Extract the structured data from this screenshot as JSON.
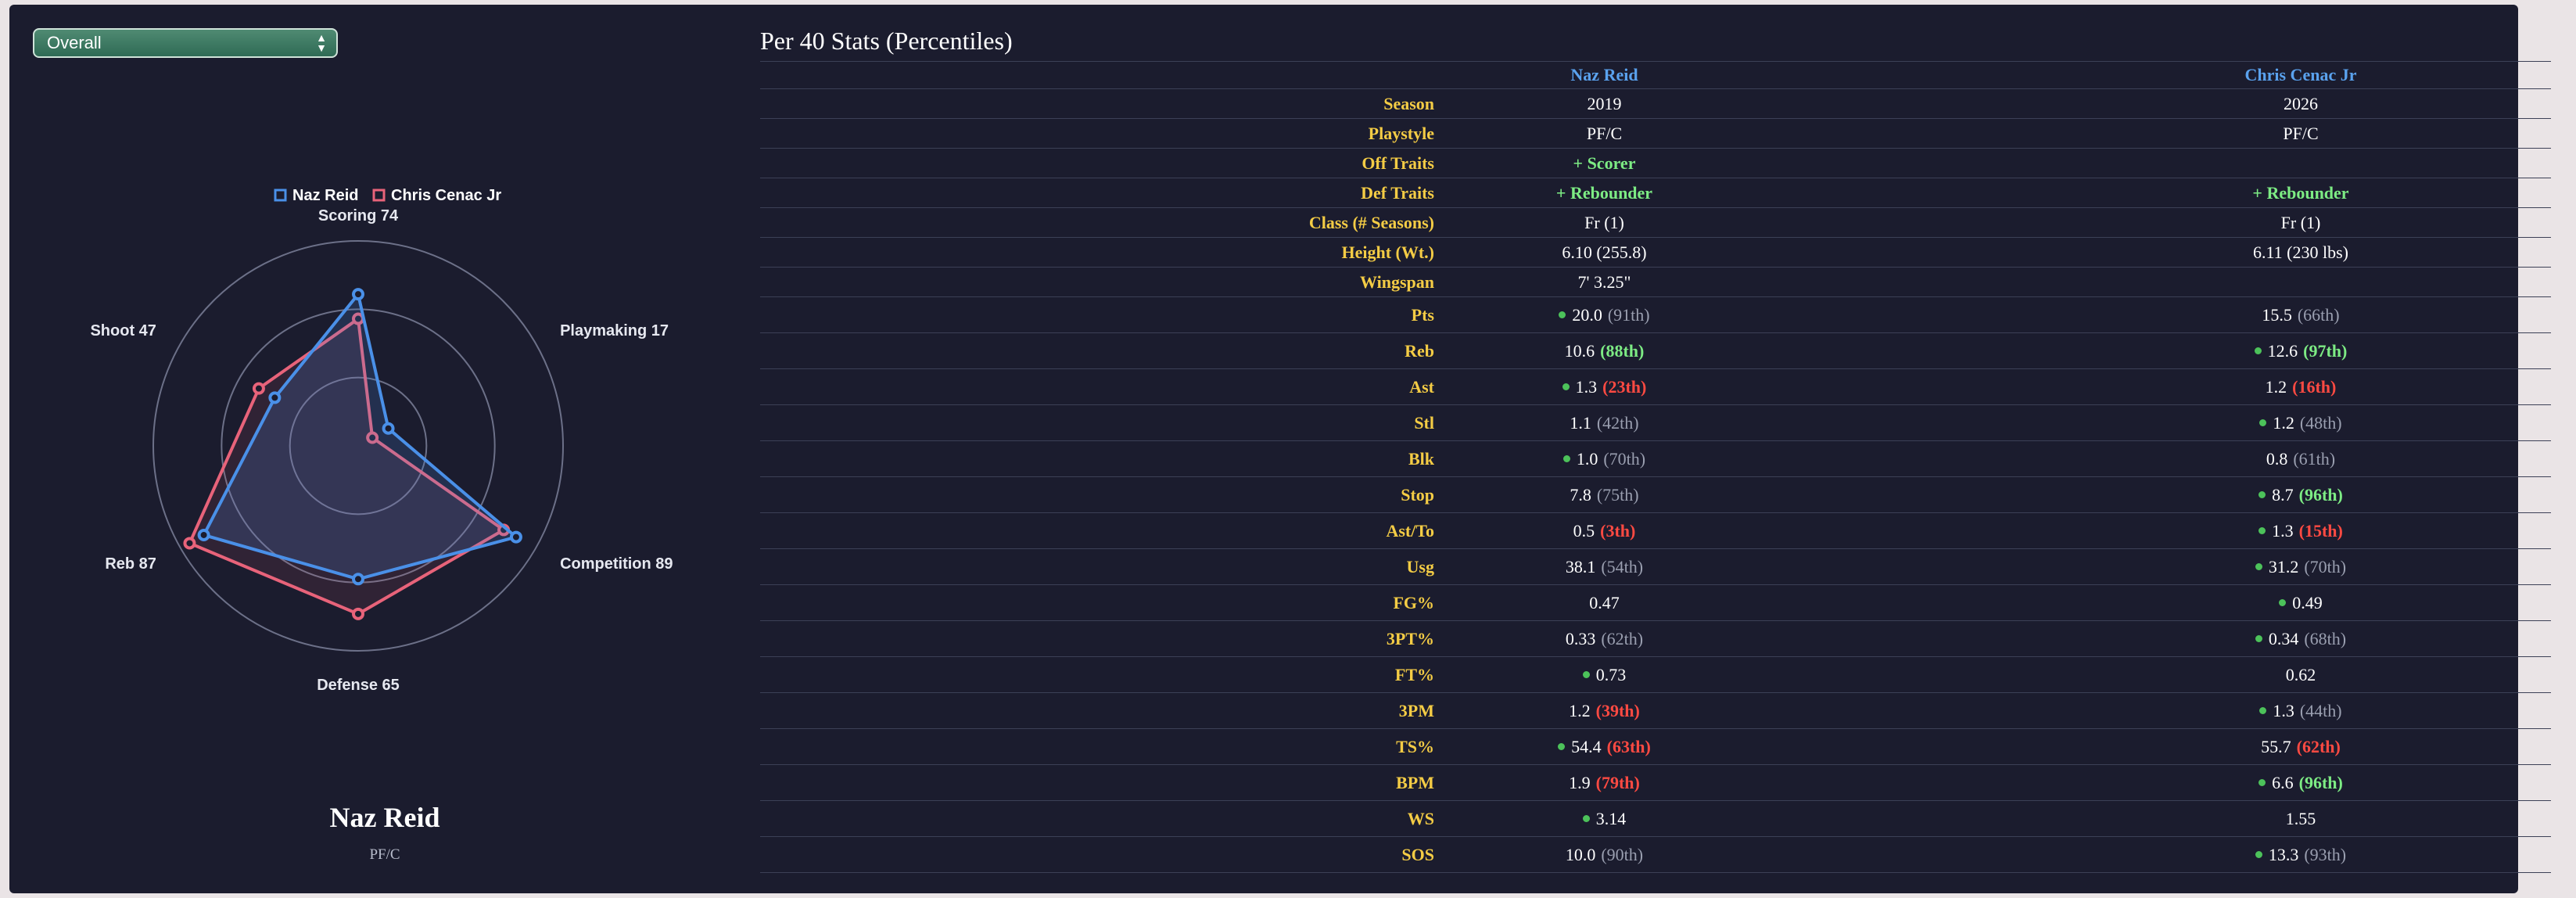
{
  "selector": {
    "value": "Overall"
  },
  "radar": {
    "legend": [
      {
        "name": "Naz Reid",
        "color": "#4a90e8"
      },
      {
        "name": "Chris Cenac Jr",
        "color": "#e8637a"
      }
    ],
    "axes": [
      "Scoring 74",
      "Playmaking 17",
      "Competition 89",
      "Defense 65",
      "Reb 87",
      "Shoot 47"
    ],
    "series": [
      {
        "name": "Naz Reid",
        "values": [
          74,
          17,
          89,
          65,
          87,
          47
        ]
      },
      {
        "name": "Chris Cenac Jr",
        "values": [
          62,
          8,
          82,
          82,
          95,
          56
        ]
      }
    ]
  },
  "player": {
    "name": "Naz Reid",
    "position": "PF/C"
  },
  "table": {
    "title": "Per 40 Stats (Percentiles)",
    "headers": [
      "Naz Reid",
      "Chris Cenac Jr"
    ],
    "rows": [
      {
        "label": "Season",
        "a": {
          "value": "2019"
        },
        "b": {
          "value": "2026"
        }
      },
      {
        "label": "Playstyle",
        "a": {
          "value": "PF/C"
        },
        "b": {
          "value": "PF/C"
        }
      },
      {
        "label": "Off Traits",
        "a": {
          "value": "+ Scorer",
          "trait": true
        },
        "b": {
          "value": ""
        }
      },
      {
        "label": "Def Traits",
        "a": {
          "value": "+ Rebounder",
          "trait": true
        },
        "b": {
          "value": "+ Rebounder",
          "trait": true
        }
      },
      {
        "label": "Class (# Seasons)",
        "a": {
          "value": "Fr (1)"
        },
        "b": {
          "value": "Fr (1)"
        }
      },
      {
        "label": "Height (Wt.)",
        "a": {
          "value": "6.10 (255.8)"
        },
        "b": {
          "value": "6.11 (230 lbs)"
        }
      },
      {
        "label": "Wingspan",
        "a": {
          "value": "7' 3.25\""
        },
        "b": {
          "value": ""
        }
      },
      {
        "label": "Pts",
        "a": {
          "value": "20.0",
          "pct": "(91th)",
          "pctClass": "gray",
          "dot": true
        },
        "b": {
          "value": "15.5",
          "pct": "(66th)",
          "pctClass": "gray"
        }
      },
      {
        "label": "Reb",
        "a": {
          "value": "10.6",
          "pct": "(88th)",
          "pctClass": "green"
        },
        "b": {
          "value": "12.6",
          "pct": "(97th)",
          "pctClass": "green",
          "dot": true
        }
      },
      {
        "label": "Ast",
        "a": {
          "value": "1.3",
          "pct": "(23th)",
          "pctClass": "red",
          "dot": true
        },
        "b": {
          "value": "1.2",
          "pct": "(16th)",
          "pctClass": "red"
        }
      },
      {
        "label": "Stl",
        "a": {
          "value": "1.1",
          "pct": "(42th)",
          "pctClass": "gray"
        },
        "b": {
          "value": "1.2",
          "pct": "(48th)",
          "pctClass": "gray",
          "dot": true
        }
      },
      {
        "label": "Blk",
        "a": {
          "value": "1.0",
          "pct": "(70th)",
          "pctClass": "gray",
          "dot": true
        },
        "b": {
          "value": "0.8",
          "pct": "(61th)",
          "pctClass": "gray"
        }
      },
      {
        "label": "Stop",
        "a": {
          "value": "7.8",
          "pct": "(75th)",
          "pctClass": "gray"
        },
        "b": {
          "value": "8.7",
          "pct": "(96th)",
          "pctClass": "green",
          "dot": true
        }
      },
      {
        "label": "Ast/To",
        "a": {
          "value": "0.5",
          "pct": "(3th)",
          "pctClass": "red"
        },
        "b": {
          "value": "1.3",
          "pct": "(15th)",
          "pctClass": "red",
          "dot": true
        }
      },
      {
        "label": "Usg",
        "a": {
          "value": "38.1",
          "pct": "(54th)",
          "pctClass": "gray"
        },
        "b": {
          "value": "31.2",
          "pct": "(70th)",
          "pctClass": "gray",
          "dot": true
        }
      },
      {
        "label": "FG%",
        "a": {
          "value": "0.47"
        },
        "b": {
          "value": "0.49",
          "dot": true
        }
      },
      {
        "label": "3PT%",
        "a": {
          "value": "0.33",
          "pct": "(62th)",
          "pctClass": "gray"
        },
        "b": {
          "value": "0.34",
          "pct": "(68th)",
          "pctClass": "gray",
          "dot": true
        }
      },
      {
        "label": "FT%",
        "a": {
          "value": "0.73",
          "dot": true
        },
        "b": {
          "value": "0.62"
        }
      },
      {
        "label": "3PM",
        "a": {
          "value": "1.2",
          "pct": "(39th)",
          "pctClass": "red"
        },
        "b": {
          "value": "1.3",
          "pct": "(44th)",
          "pctClass": "gray",
          "dot": true
        }
      },
      {
        "label": "TS%",
        "a": {
          "value": "54.4",
          "pct": "(63th)",
          "pctClass": "red",
          "dot": true
        },
        "b": {
          "value": "55.7",
          "pct": "(62th)",
          "pctClass": "red"
        }
      },
      {
        "label": "BPM",
        "a": {
          "value": "1.9",
          "pct": "(79th)",
          "pctClass": "red"
        },
        "b": {
          "value": "6.6",
          "pct": "(96th)",
          "pctClass": "green",
          "dot": true
        }
      },
      {
        "label": "WS",
        "a": {
          "value": "3.14",
          "dot": true
        },
        "b": {
          "value": "1.55"
        }
      },
      {
        "label": "SOS",
        "a": {
          "value": "10.0",
          "pct": "(90th)",
          "pctClass": "gray"
        },
        "b": {
          "value": "13.3",
          "pct": "(93th)",
          "pctClass": "gray",
          "dot": true
        }
      }
    ]
  }
}
